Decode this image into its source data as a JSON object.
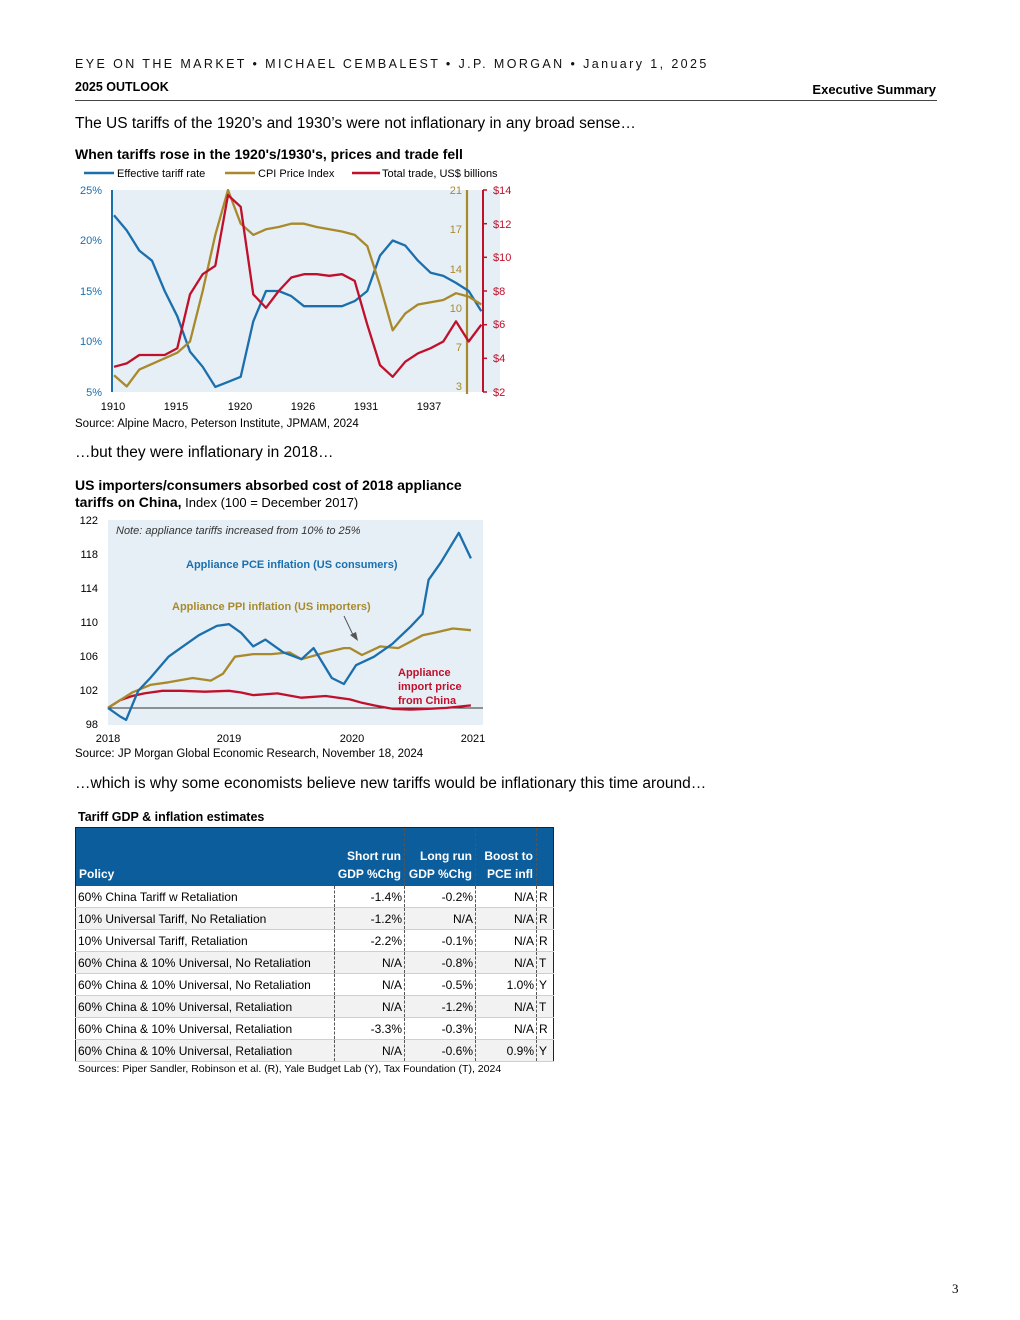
{
  "header": {
    "line1": "EYE ON THE MARKET • MICHAEL CEMBALEST • J.P. MORGAN • January 1, 2025",
    "outlook": "2025 OUTLOOK",
    "section_label": "Executive Summary"
  },
  "sections": {
    "s1": "The US tariffs of the 1920’s and 1930’s were not inflationary in any broad sense…",
    "s2": "…but they were inflationary in 2018…",
    "s3": "…which is why some economists believe new tariffs would be inflationary this time around…"
  },
  "colors": {
    "blue": "#1b6fad",
    "gold": "#a88a2c",
    "red": "#c0102c",
    "panel": "#e6eff5",
    "table_header": "#0b5d9c"
  },
  "chart1": {
    "title": "When tariffs rose in the 1920's/1930's, prices and trade fell",
    "source": "Source: Alpine Macro, Peterson Institute, JPMAM, 2024",
    "legend": [
      "Effective tariff rate",
      "CPI Price Index",
      "Total trade, US$ billions"
    ],
    "x_ticks": [
      "1910",
      "1915",
      "1920",
      "1926",
      "1931",
      "1937"
    ],
    "y_left_ticks": [
      "25%",
      "20%",
      "15%",
      "10%",
      "5%"
    ],
    "y_mid_ticks": [
      "21",
      "17",
      "14",
      "10",
      "7",
      "3"
    ],
    "y_right_ticks": [
      "$14",
      "$12",
      "$10",
      "$8",
      "$6",
      "$4",
      "$2"
    ]
  },
  "chart2": {
    "title_bold_1": "US importers/consumers absorbed cost of 2018 appliance",
    "title_bold_2": "tariffs on China,",
    "title_sub": " Index (100 = December 2017)",
    "source": "Source: JP Morgan Global Economic Research, November 18, 2024",
    "note": "Note: appliance tariffs increased from 10% to 25%",
    "label_pce": "Appliance PCE inflation (US consumers)",
    "label_ppi": "Appliance PPI inflation (US importers)",
    "label_imp1": "Appliance",
    "label_imp2": "import price",
    "label_imp3": "from China",
    "x_ticks": [
      "2018",
      "2019",
      "2020",
      "2021"
    ],
    "y_ticks": [
      "122",
      "118",
      "114",
      "110",
      "106",
      "102",
      "98"
    ]
  },
  "chart_data": [
    {
      "type": "line",
      "title": "When tariffs rose in the 1920's/1930's, prices and trade fell",
      "x_range": [
        1910,
        1940
      ],
      "ylim_left": [
        5,
        25
      ],
      "ylim_cpi": [
        3,
        21
      ],
      "ylim_right": [
        2,
        14
      ],
      "series": [
        {
          "name": "Effective tariff rate",
          "axis": "left",
          "x": [
            1910,
            1911,
            1912,
            1913,
            1914,
            1915,
            1916,
            1917,
            1918,
            1919,
            1920,
            1921,
            1922,
            1923,
            1924,
            1925,
            1926,
            1927,
            1928,
            1929,
            1930,
            1931,
            1932,
            1933,
            1934,
            1935,
            1936,
            1937,
            1938,
            1939
          ],
          "values": [
            22.5,
            21.0,
            19.0,
            18.0,
            15.0,
            12.5,
            9.0,
            7.5,
            5.5,
            6.0,
            6.5,
            12.0,
            15.0,
            15.0,
            14.5,
            13.5,
            13.5,
            13.5,
            13.5,
            14.0,
            15.0,
            18.5,
            20.0,
            19.5,
            18.0,
            16.8,
            16.5,
            15.8,
            15.0,
            13.0
          ]
        },
        {
          "name": "CPI Price Index",
          "axis": "cpi",
          "x": [
            1910,
            1911,
            1912,
            1913,
            1914,
            1915,
            1916,
            1917,
            1918,
            1919,
            1920,
            1921,
            1922,
            1923,
            1924,
            1925,
            1926,
            1927,
            1928,
            1929,
            1930,
            1931,
            1932,
            1933,
            1934,
            1935,
            1936,
            1937,
            1938,
            1939
          ],
          "values": [
            4.5,
            3.5,
            5.0,
            5.5,
            6.0,
            6.5,
            7.5,
            12.0,
            17.0,
            21.0,
            18.0,
            17.0,
            17.5,
            17.7,
            18.0,
            18.0,
            17.7,
            17.5,
            17.3,
            17.0,
            16.0,
            12.5,
            8.5,
            10.0,
            10.8,
            11.0,
            11.2,
            11.8,
            11.5,
            10.8
          ]
        },
        {
          "name": "Total trade, US$ billions",
          "axis": "right",
          "x": [
            1910,
            1911,
            1912,
            1913,
            1914,
            1915,
            1916,
            1917,
            1918,
            1919,
            1920,
            1921,
            1922,
            1923,
            1924,
            1925,
            1926,
            1927,
            1928,
            1929,
            1930,
            1931,
            1932,
            1933,
            1934,
            1935,
            1936,
            1937,
            1938,
            1939
          ],
          "values": [
            3.5,
            3.7,
            4.2,
            4.2,
            4.2,
            4.6,
            7.8,
            9.0,
            9.5,
            13.7,
            13.0,
            7.8,
            7.0,
            8.0,
            8.8,
            9.0,
            9.0,
            8.9,
            9.0,
            8.6,
            6.0,
            3.6,
            2.9,
            3.8,
            4.3,
            4.6,
            5.0,
            6.2,
            5.0,
            6.0
          ]
        }
      ]
    },
    {
      "type": "line",
      "title": "US importers/consumers absorbed cost of 2018 appliance tariffs on China, Index (100 = December 2017)",
      "x_range": [
        2018,
        2021.1
      ],
      "ylim": [
        98,
        122
      ],
      "series": [
        {
          "name": "Appliance PCE inflation (US consumers)",
          "x": [
            2018.0,
            2018.1,
            2018.15,
            2018.25,
            2018.35,
            2018.5,
            2018.6,
            2018.75,
            2018.9,
            2019.0,
            2019.1,
            2019.2,
            2019.3,
            2019.45,
            2019.6,
            2019.7,
            2019.85,
            2019.95,
            2020.05,
            2020.2,
            2020.35,
            2020.5,
            2020.6,
            2020.65,
            2020.75,
            2020.9,
            2021.0
          ],
          "values": [
            100.0,
            99.0,
            98.6,
            102.0,
            103.5,
            106.0,
            107.0,
            108.5,
            109.6,
            109.8,
            108.8,
            107.2,
            108.0,
            106.5,
            105.7,
            107.0,
            103.5,
            102.8,
            105.0,
            106.0,
            107.5,
            109.5,
            111.0,
            115.0,
            117.0,
            120.5,
            117.5
          ]
        },
        {
          "name": "Appliance PPI inflation (US importers)",
          "x": [
            2018.0,
            2018.1,
            2018.2,
            2018.35,
            2018.5,
            2018.7,
            2018.85,
            2018.95,
            2019.05,
            2019.2,
            2019.35,
            2019.5,
            2019.6,
            2019.8,
            2019.95,
            2020.0,
            2020.1,
            2020.25,
            2020.4,
            2020.6,
            2020.7,
            2020.85,
            2021.0
          ],
          "values": [
            100.0,
            100.9,
            101.8,
            102.7,
            103.0,
            103.5,
            103.2,
            104.0,
            106.0,
            106.3,
            106.3,
            106.5,
            105.7,
            106.5,
            107.0,
            107.0,
            106.2,
            107.2,
            107.0,
            108.5,
            108.8,
            109.3,
            109.1
          ]
        },
        {
          "name": "Appliance import price from China",
          "x": [
            2018.0,
            2018.1,
            2018.2,
            2018.3,
            2018.45,
            2018.6,
            2018.8,
            2019.0,
            2019.1,
            2019.2,
            2019.4,
            2019.6,
            2019.8,
            2020.0,
            2020.1,
            2020.2,
            2020.35,
            2020.5,
            2020.65,
            2020.8,
            2021.0
          ],
          "values": [
            100.0,
            100.9,
            101.4,
            101.7,
            102.0,
            102.0,
            101.9,
            102.0,
            101.8,
            101.5,
            101.7,
            101.2,
            101.4,
            101.0,
            100.6,
            100.3,
            99.9,
            99.8,
            99.9,
            100.0,
            100.3
          ]
        }
      ]
    }
  ],
  "table": {
    "title": "Tariff GDP & inflation estimates",
    "headers": {
      "policy": "Policy",
      "short_1": "Short run",
      "short_2": "GDP %Chg",
      "long_1": "Long run",
      "long_2": "GDP %Chg",
      "boost_1": "Boost to",
      "boost_2": "PCE infl"
    },
    "rows": [
      {
        "policy": "60% China Tariff w Retaliation",
        "short": "-1.4%",
        "long": "-0.2%",
        "boost": "N/A",
        "src": "R"
      },
      {
        "policy": "10% Universal Tariff, No Retaliation",
        "short": "-1.2%",
        "long": "N/A",
        "boost": "N/A",
        "src": "R"
      },
      {
        "policy": "10% Universal Tariff, Retaliation",
        "short": "-2.2%",
        "long": "-0.1%",
        "boost": "N/A",
        "src": "R"
      },
      {
        "policy": "60% China & 10% Universal, No Retaliation",
        "short": "N/A",
        "long": "-0.8%",
        "boost": "N/A",
        "src": "T"
      },
      {
        "policy": "60% China & 10% Universal, No Retaliation",
        "short": "N/A",
        "long": "-0.5%",
        "boost": "1.0%",
        "src": "Y"
      },
      {
        "policy": "60% China & 10% Universal, Retaliation",
        "short": "N/A",
        "long": "-1.2%",
        "boost": "N/A",
        "src": "T"
      },
      {
        "policy": "60% China & 10% Universal, Retaliation",
        "short": "-3.3%",
        "long": "-0.3%",
        "boost": "N/A",
        "src": "R"
      },
      {
        "policy": "60% China & 10% Universal, Retaliation",
        "short": "N/A",
        "long": "-0.6%",
        "boost": "0.9%",
        "src": "Y"
      }
    ],
    "source": "Sources: Piper Sandler, Robinson et al. (R), Yale Budget Lab (Y), Tax Foundation (T), 2024"
  },
  "page_number": "3"
}
